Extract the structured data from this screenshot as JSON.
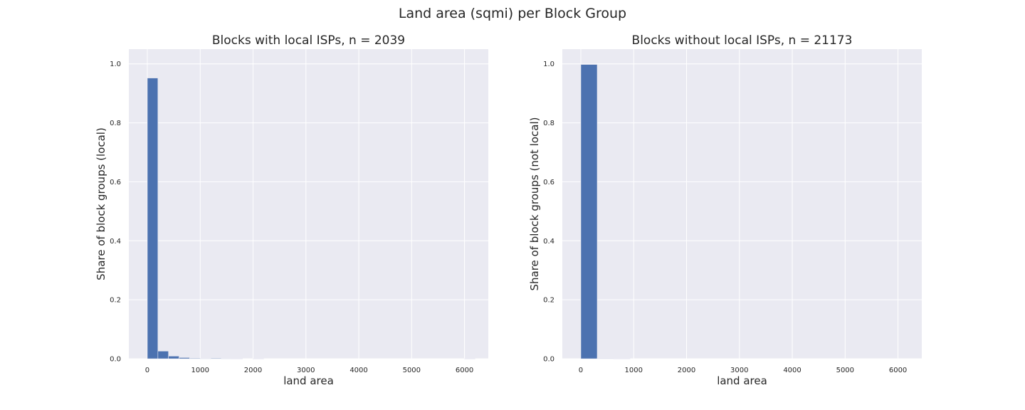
{
  "figure": {
    "suptitle": "Land area (sqmi) per Block Group",
    "background": "#ffffff",
    "axes_facecolor": "#eaeaf2",
    "grid_color": "#ffffff",
    "bar_color": "#4c72b0"
  },
  "chart_data": [
    {
      "type": "bar",
      "title": "Blocks with local ISPs, n = 2039",
      "xlabel": "land area",
      "ylabel": "Share of block groups (local)",
      "xlim": [
        -350,
        6450
      ],
      "ylim": [
        0,
        1.05
      ],
      "xticks": [
        0,
        1000,
        2000,
        3000,
        4000,
        5000,
        6000
      ],
      "yticks": [
        0.0,
        0.2,
        0.4,
        0.6,
        0.8,
        1.0
      ],
      "xtick_labels": [
        "0",
        "1000",
        "2000",
        "3000",
        "4000",
        "5000",
        "6000"
      ],
      "ytick_labels": [
        "0.0",
        "0.2",
        "0.4",
        "0.6",
        "0.8",
        "1.0"
      ],
      "grid": true,
      "bin_width": 200,
      "bins": [
        {
          "x0": 0,
          "x1": 200,
          "value": 0.952
        },
        {
          "x0": 200,
          "x1": 400,
          "value": 0.026
        },
        {
          "x0": 400,
          "x1": 600,
          "value": 0.009
        },
        {
          "x0": 600,
          "x1": 800,
          "value": 0.004
        },
        {
          "x0": 800,
          "x1": 1000,
          "value": 0.002
        },
        {
          "x0": 1000,
          "x1": 1200,
          "value": 0.001
        },
        {
          "x0": 1200,
          "x1": 1400,
          "value": 0.002
        },
        {
          "x0": 1400,
          "x1": 1600,
          "value": 0.001
        },
        {
          "x0": 1600,
          "x1": 1800,
          "value": 0.0005
        },
        {
          "x0": 2000,
          "x1": 2200,
          "value": 0.0005
        },
        {
          "x0": 6000,
          "x1": 6200,
          "value": 0.0005
        }
      ]
    },
    {
      "type": "bar",
      "title": "Blocks without local ISPs, n = 21173",
      "xlabel": "land area",
      "ylabel": "Share of block groups (not local)",
      "xlim": [
        -350,
        6450
      ],
      "ylim": [
        0,
        1.05
      ],
      "xticks": [
        0,
        1000,
        2000,
        3000,
        4000,
        5000,
        6000
      ],
      "yticks": [
        0.0,
        0.2,
        0.4,
        0.6,
        0.8,
        1.0
      ],
      "xtick_labels": [
        "0",
        "1000",
        "2000",
        "3000",
        "4000",
        "5000",
        "6000"
      ],
      "ytick_labels": [
        "0.0",
        "0.2",
        "0.4",
        "0.6",
        "0.8",
        "1.0"
      ],
      "grid": true,
      "bin_width": 310,
      "bins": [
        {
          "x0": 0,
          "x1": 310,
          "value": 0.998
        },
        {
          "x0": 310,
          "x1": 620,
          "value": 0.0015
        },
        {
          "x0": 620,
          "x1": 930,
          "value": 0.0005
        }
      ]
    }
  ]
}
